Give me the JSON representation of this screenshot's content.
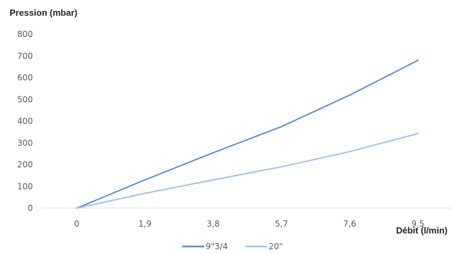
{
  "chart_data": {
    "type": "line",
    "ylabel": "Pression (mbar)",
    "xlabel": "Débit (l/min)",
    "x": [
      "0",
      "1,9",
      "3,8",
      "5,7",
      "7,6",
      "9,5"
    ],
    "ylim": [
      0,
      800
    ],
    "yticks": [
      "0",
      "100",
      "200",
      "300",
      "400",
      "500",
      "600",
      "700",
      "800"
    ],
    "grid": false,
    "legend_position": "bottom",
    "series": [
      {
        "name": "9\"3/4",
        "values": [
          0,
          130,
          255,
          375,
          520,
          680
        ],
        "color": "#5b8fc7"
      },
      {
        "name": "20\"",
        "values": [
          0,
          68,
          130,
          190,
          260,
          343
        ],
        "color": "#9dc3e6"
      }
    ]
  }
}
